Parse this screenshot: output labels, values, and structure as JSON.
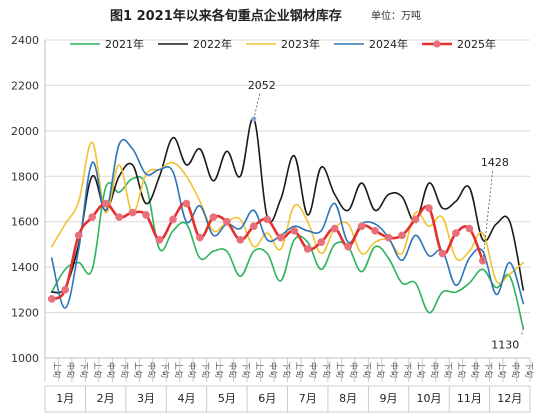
{
  "chart_data": {
    "type": "line",
    "title": "图1  2021年以来各旬重点企业钢材库存",
    "unit": "单位：万吨",
    "ylim": [
      1000,
      2400
    ],
    "yticks": [
      1000,
      1200,
      1400,
      1600,
      1800,
      2000,
      2200,
      2400
    ],
    "grid": true,
    "legend_position": "top",
    "period_labels": [
      "上旬",
      "中旬",
      "下旬"
    ],
    "months": [
      "1月",
      "2月",
      "3月",
      "4月",
      "5月",
      "6月",
      "7月",
      "8月",
      "9月",
      "10月",
      "11月",
      "12月"
    ],
    "series": [
      {
        "name": "2021年",
        "color": "#2db35d",
        "width": 1.6,
        "markers": false,
        "values": [
          1290,
          1390,
          1420,
          1390,
          1750,
          1730,
          1790,
          1760,
          1480,
          1560,
          1590,
          1440,
          1470,
          1470,
          1360,
          1470,
          1460,
          1340,
          1520,
          1510,
          1390,
          1500,
          1490,
          1380,
          1490,
          1440,
          1330,
          1330,
          1200,
          1290,
          1290,
          1330,
          1390,
          1310,
          1360,
          1130
        ]
      },
      {
        "name": "2022年",
        "color": "#1a1a1a",
        "width": 1.6,
        "markers": false,
        "values": [
          1290,
          1310,
          1500,
          1800,
          1650,
          1800,
          1850,
          1680,
          1800,
          1970,
          1850,
          1920,
          1780,
          1910,
          1800,
          2052,
          1620,
          1700,
          1890,
          1630,
          1840,
          1720,
          1650,
          1770,
          1650,
          1720,
          1710,
          1600,
          1770,
          1660,
          1690,
          1750,
          1520,
          1590,
          1600,
          1300
        ]
      },
      {
        "name": "2023年",
        "color": "#f1c232",
        "width": 1.6,
        "markers": false,
        "values": [
          1490,
          1590,
          1690,
          1950,
          1640,
          1850,
          1640,
          1810,
          1830,
          1860,
          1800,
          1690,
          1560,
          1600,
          1610,
          1490,
          1550,
          1480,
          1670,
          1600,
          1460,
          1570,
          1590,
          1460,
          1510,
          1520,
          1460,
          1640,
          1580,
          1620,
          1440,
          1470,
          1550,
          1340,
          1370,
          1420
        ]
      },
      {
        "name": "2024年",
        "color": "#2e75b6",
        "width": 1.6,
        "markers": false,
        "values": [
          1440,
          1220,
          1480,
          1860,
          1650,
          1940,
          1920,
          1810,
          1830,
          1820,
          1600,
          1670,
          1540,
          1590,
          1570,
          1650,
          1520,
          1540,
          1580,
          1560,
          1560,
          1680,
          1510,
          1590,
          1590,
          1530,
          1430,
          1540,
          1450,
          1470,
          1320,
          1440,
          1470,
          1280,
          1420,
          1240
        ]
      },
      {
        "name": "2025年",
        "color": "#e33030",
        "width": 2.6,
        "markers": true,
        "marker_color": "#e8707a",
        "values": [
          1260,
          1300,
          1540,
          1620,
          1680,
          1620,
          1640,
          1630,
          1520,
          1610,
          1680,
          1530,
          1620,
          1600,
          1520,
          1580,
          1610,
          1530,
          1560,
          1480,
          1510,
          1570,
          1490,
          1580,
          1560,
          1530,
          1540,
          1610,
          1660,
          1460,
          1550,
          1570,
          1428
        ]
      }
    ],
    "annotations": [
      {
        "label": "2052",
        "series": "2022年",
        "index": 15
      },
      {
        "label": "1428",
        "series": "2025年",
        "index": 32
      },
      {
        "label": "1130",
        "series": "2021年",
        "index": 35
      }
    ]
  }
}
